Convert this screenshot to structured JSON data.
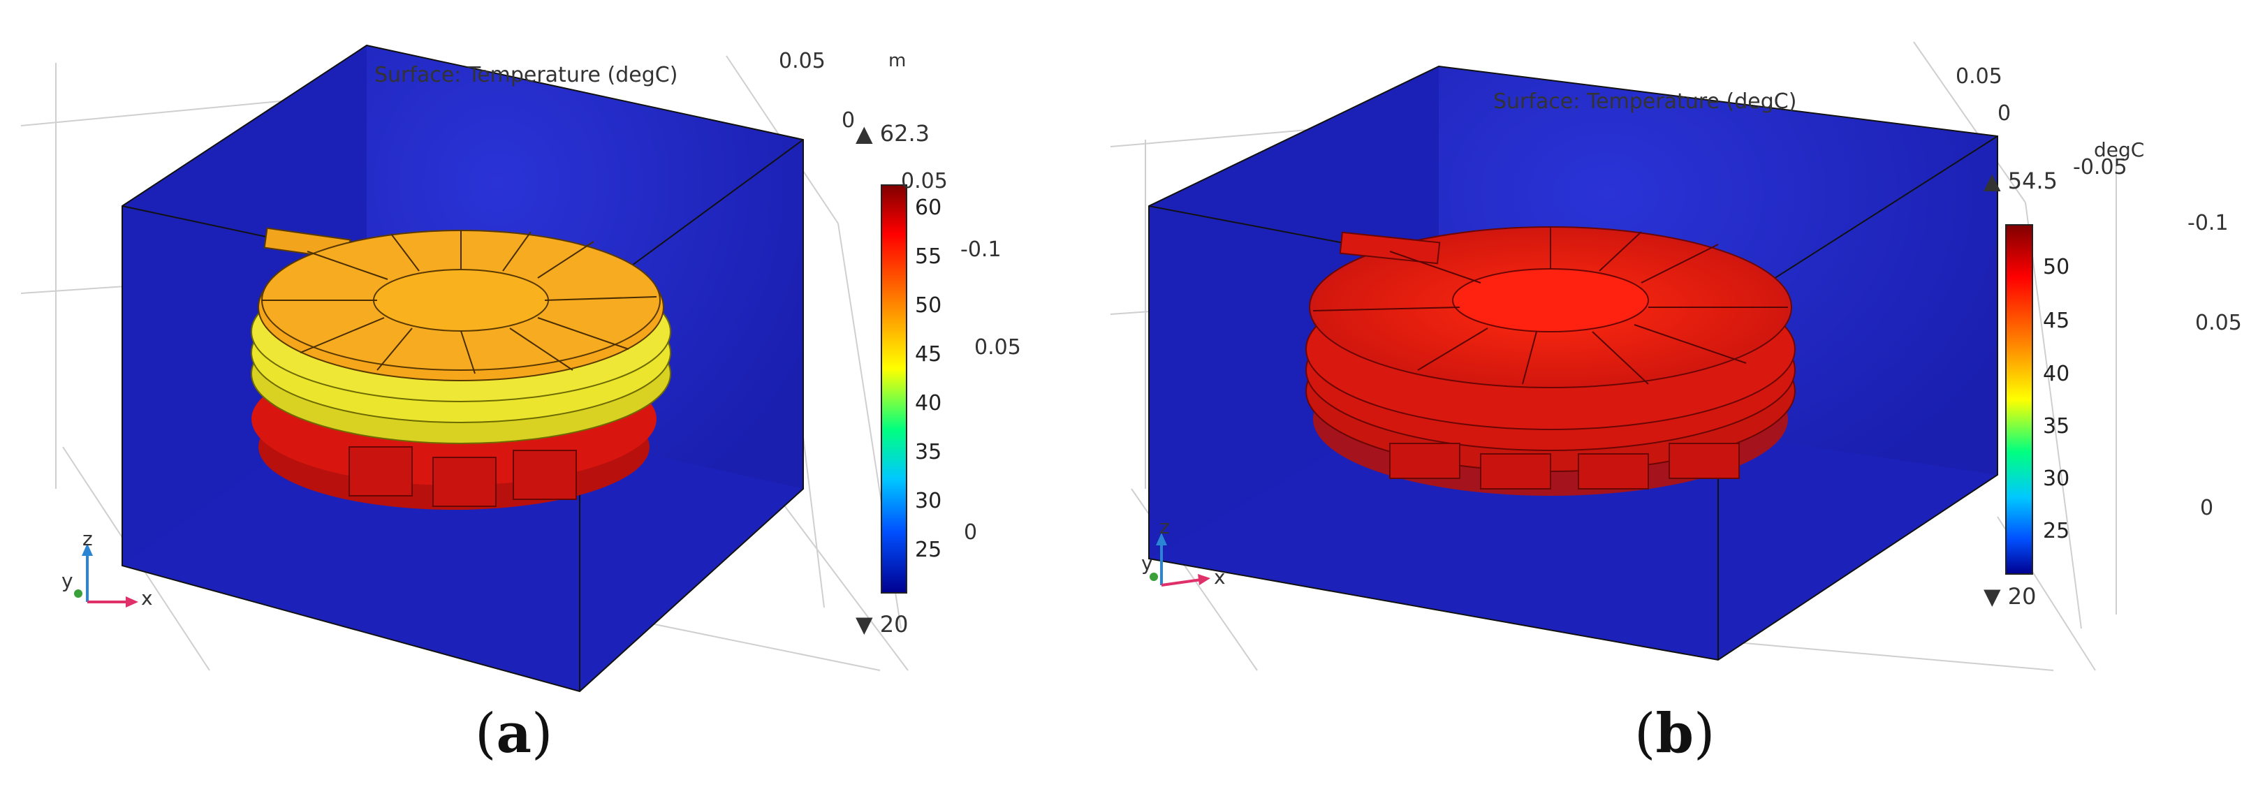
{
  "figure": {
    "panels": [
      {
        "caption_letter": "a",
        "plot_title": "Surface: Temperature (degC)",
        "unit_label": "m",
        "max_label": "▲ 62.3",
        "min_label": "▼ 20",
        "colorbar_ticks": [
          "60",
          "55",
          "50",
          "45",
          "40",
          "35",
          "30",
          "25"
        ],
        "colorbar_top_label": "0.05",
        "axis_labels": [
          "0.05",
          "0",
          "-0.1",
          "0.05",
          "0"
        ],
        "triad": {
          "z": "z",
          "y": "y",
          "x": "x"
        },
        "colors": {
          "box": "#1a1fb8",
          "coil_top": "#f5a31a",
          "coil_ring": "#e8e23a",
          "core": "#d4140f"
        }
      },
      {
        "caption_letter": "b",
        "plot_title": "Surface: Temperature (degC)",
        "unit_label": "degC",
        "max_label": "▲ 54.5",
        "min_label": "▼ 20",
        "colorbar_ticks": [
          "50",
          "45",
          "40",
          "35",
          "30",
          "25"
        ],
        "colorbar_top_label": "-0.05",
        "axis_labels": [
          "0.05",
          "0",
          "-0.1",
          "0.05",
          "0"
        ],
        "triad": {
          "z": "z",
          "y": "y",
          "x": "x"
        },
        "colors": {
          "box": "#1a1fb8",
          "coil_top": "#d81a10",
          "coil_ring": "#cc1a12",
          "core": "#d4140f"
        }
      }
    ]
  }
}
